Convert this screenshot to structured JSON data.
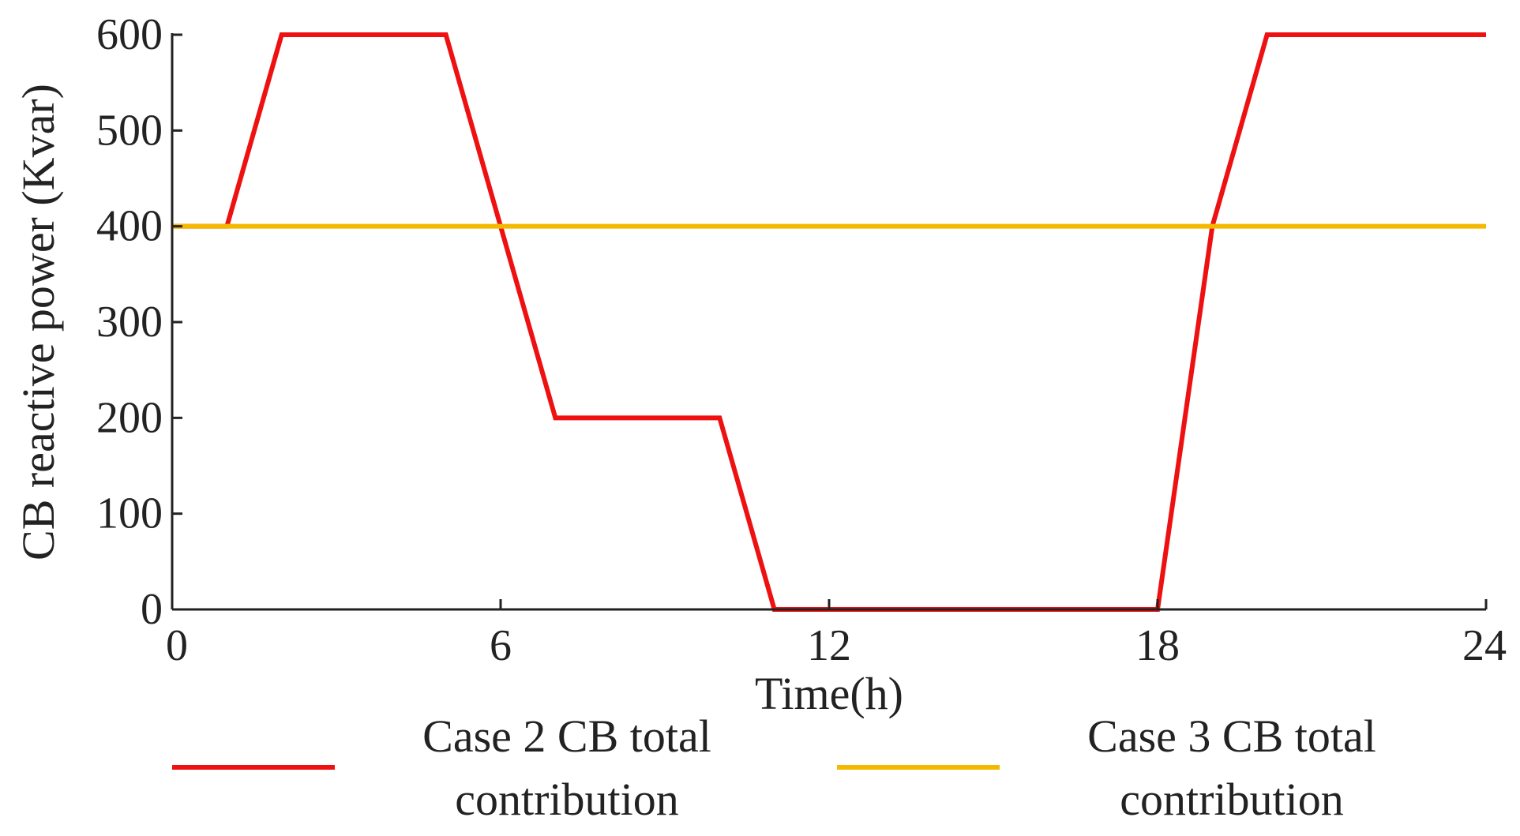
{
  "chart_data": {
    "type": "line",
    "xlabel": "Time(h)",
    "ylabel": "CB reactive power (Kvar)",
    "xlim": [
      0,
      24
    ],
    "ylim": [
      0,
      600
    ],
    "xticks": [
      0,
      6,
      12,
      18,
      24
    ],
    "yticks": [
      0,
      100,
      200,
      300,
      400,
      500,
      600
    ],
    "grid": false,
    "legend_position": "bottom",
    "series": [
      {
        "name": "Case 2 CB total contribution",
        "legend_lines": [
          "Case 2 CB total",
          "contribution"
        ],
        "color": "#ee1111",
        "points": [
          [
            0,
            400
          ],
          [
            1,
            400
          ],
          [
            2,
            600
          ],
          [
            5,
            600
          ],
          [
            6,
            400
          ],
          [
            7,
            200
          ],
          [
            10,
            200
          ],
          [
            11,
            0
          ],
          [
            18,
            0
          ],
          [
            19,
            400
          ],
          [
            20,
            600
          ],
          [
            24,
            600
          ]
        ]
      },
      {
        "name": "Case 3 CB total contribution",
        "legend_lines": [
          "Case 3 CB total",
          "contribution"
        ],
        "color": "#f5b800",
        "points": [
          [
            0,
            400
          ],
          [
            24,
            400
          ]
        ]
      }
    ]
  }
}
